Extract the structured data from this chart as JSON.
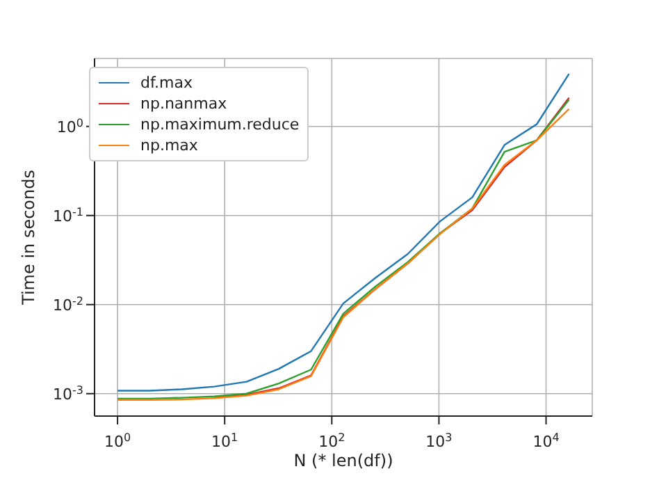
{
  "chart_data": {
    "type": "line",
    "xlabel": "N (* len(df))",
    "ylabel": "Time in seconds",
    "log": "xy",
    "grid": true,
    "legend": "top left",
    "marker": "none",
    "line_style": "solid",
    "x": [
      1,
      2,
      4,
      8,
      16,
      32,
      64,
      128,
      256,
      512,
      1024,
      2048,
      4096,
      8192,
      16384
    ],
    "xlim": [
      0.61,
      27000
    ],
    "ylim": [
      0.00056,
      5.8
    ],
    "xticks": [
      {
        "value": 1,
        "label": "10$^{0}$"
      },
      {
        "value": 10,
        "label": "10$^{1}$"
      },
      {
        "value": 100,
        "label": "10$^{2}$"
      },
      {
        "value": 1000,
        "label": "10$^{3}$"
      },
      {
        "value": 10000,
        "label": "10$^{4}$"
      }
    ],
    "yticks": [
      {
        "value": 0.001,
        "label": "10$^{-3}$"
      },
      {
        "value": 0.01,
        "label": "10$^{-2}$"
      },
      {
        "value": 0.1,
        "label": "10$^{-1}$"
      },
      {
        "value": 1,
        "label": "10$^{0}$"
      }
    ],
    "series": [
      {
        "name": "df.max",
        "color": "#1f77b4",
        "values": [
          0.00108,
          0.00108,
          0.00112,
          0.0012,
          0.00136,
          0.0019,
          0.003,
          0.0103,
          0.02,
          0.037,
          0.086,
          0.16,
          0.62,
          1.06,
          3.9
        ]
      },
      {
        "name": "np.nanmax",
        "color": "#d62728",
        "values": [
          null,
          null,
          null,
          0.0009,
          0.00097,
          0.00115,
          0.0016,
          0.0074,
          0.015,
          0.029,
          0.063,
          0.115,
          0.35,
          0.7,
          2.1
        ]
      },
      {
        "name": "np.maximum.reduce",
        "color": "#2ca02c",
        "values": [
          0.00088,
          0.00088,
          0.0009,
          0.00093,
          0.001,
          0.0013,
          0.00186,
          0.0079,
          0.016,
          0.03,
          0.063,
          0.12,
          0.52,
          0.7,
          2.0
        ]
      },
      {
        "name": "np.max",
        "color": "#ff7f0e",
        "values": [
          0.00085,
          0.00085,
          0.00086,
          0.00089,
          0.00095,
          0.00112,
          0.00157,
          0.0072,
          0.015,
          0.029,
          0.062,
          0.12,
          0.37,
          0.7,
          1.57
        ]
      }
    ]
  }
}
